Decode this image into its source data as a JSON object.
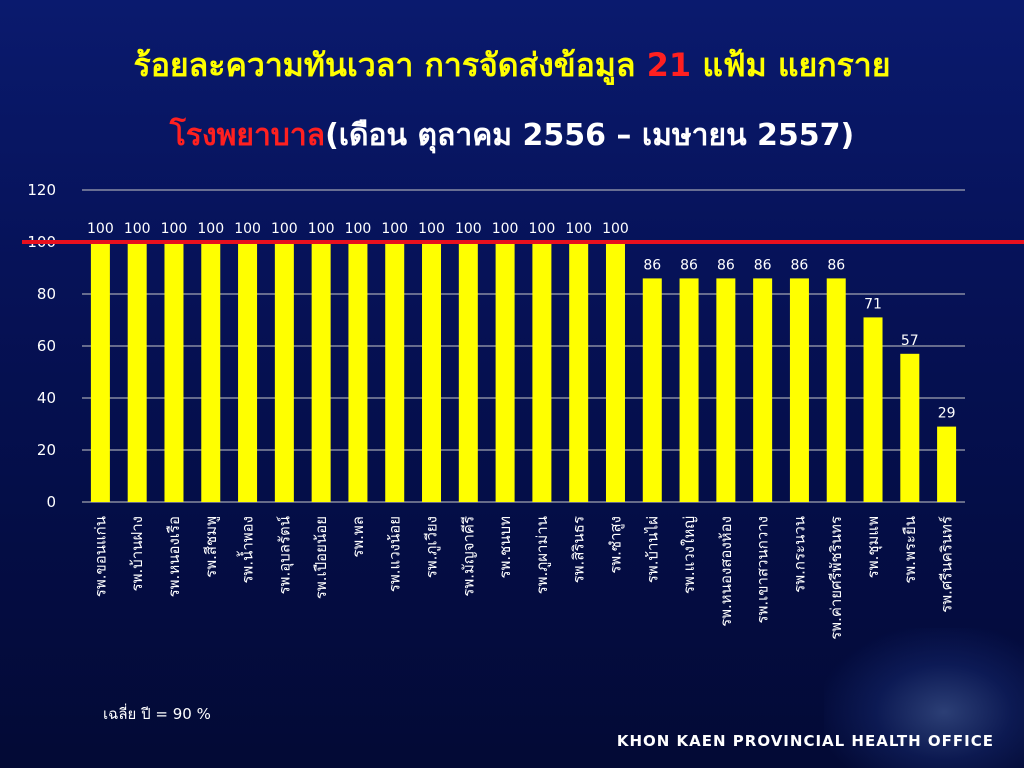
{
  "title": {
    "line1": "ร้อยละความทันเวลา การจัดส่งข้อมูล",
    "line1_number": "21",
    "line1_suffix": "แฟ้ม แยกราย",
    "line2_highlight": "โรงพยาบาล",
    "line2_rest": "(เดือน ตุลาคม 2556 – เมษายน 2557)"
  },
  "chart_data": {
    "type": "bar",
    "categories": [
      "รพ.ขอนแก่น",
      "รพ.บ้านฝาง",
      "รพ.หนองเรือ",
      "รพ.สีชมพู",
      "รพ.น้ำพอง",
      "รพ.อุบลรัตน์",
      "รพ.เปือยน้อย",
      "รพ.พล",
      "รพ.แวงน้อย",
      "รพ.ภูเวียง",
      "รพ.มัญจาคีรี",
      "รพ.ชนบท",
      "รพ.ภูผาม่าน",
      "รพ.สิรินธร",
      "รพ.ซำสูง",
      "รพ.บ้านไผ่",
      "รพ.แวงใหญ่",
      "รพ.หนองสองห้อง",
      "รพ.เขาสวนกวาง",
      "รพ.กระนวน",
      "รพ.ค่ายศรีพัชรินทร",
      "รพ.ชุมแพ",
      "รพ.พระยืน",
      "รพ.ศรีนครินทร์"
    ],
    "values": [
      100,
      100,
      100,
      100,
      100,
      100,
      100,
      100,
      100,
      100,
      100,
      100,
      100,
      100,
      100,
      86,
      86,
      86,
      86,
      86,
      86,
      71,
      57,
      29
    ],
    "data_labels": [
      "100",
      "100",
      "100",
      "100",
      "100",
      "100",
      "100",
      "100",
      "100",
      "100",
      "100",
      "100",
      "100",
      "100",
      "100",
      "86",
      "86",
      "86",
      "86",
      "86",
      "86",
      "71",
      "57",
      "29"
    ],
    "yticks": [
      "0",
      "20",
      "40",
      "60",
      "80",
      "100",
      "120"
    ],
    "ylim": [
      0,
      120
    ],
    "reference_line": 100,
    "grid": true,
    "colors": {
      "bar": "#ffff00",
      "reference": "#e8101e",
      "grid": "#c8c8c8",
      "text": "#ffffff"
    }
  },
  "footer": {
    "average_note": "เฉลี่ย ปี = 90 %",
    "org_name": "KHON KAEN PROVINCIAL HEALTH OFFICE"
  }
}
